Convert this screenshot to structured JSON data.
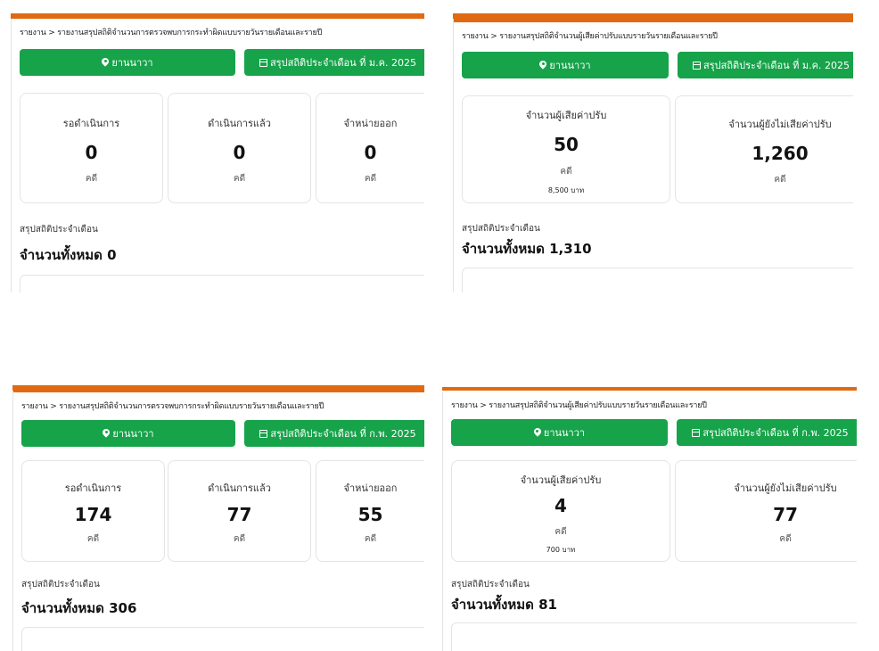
{
  "shared": {
    "location": "ยานนาวา",
    "unit_cases": "คดี",
    "summary_title": "สรุปสถิติประจำเดือน"
  },
  "panels": [
    {
      "breadcrumb": "รายงาน > รายงานสรุปสถิติจำนวนการตรวจพบการกระทำผิดแบบรายวันรายเดือนและรายปี",
      "month_label": "สรุปสถิติประจำเดือน ที่ ม.ค. 2025",
      "cards": [
        {
          "label": "รอดำเนินการ",
          "value": "0"
        },
        {
          "label": "ดำเนินการแล้ว",
          "value": "0"
        },
        {
          "label": "จำหน่ายออก",
          "value": "0"
        }
      ],
      "total": "จำนวนทั้งหมด 0"
    },
    {
      "breadcrumb": "รายงาน > รายงานสรุปสถิติจำนวนผู้เสียค่าปรับแบบรายวันรายเดือนและรายปี",
      "month_label": "สรุปสถิติประจำเดือน ที่ ม.ค. 2025",
      "cards": [
        {
          "label": "จำนวนผู้เสียค่าปรับ",
          "value": "50",
          "amount": "8,500 บาท"
        },
        {
          "label": "จำนวนผู้ยังไม่เสียค่าปรับ",
          "value": "1,260"
        }
      ],
      "total": "จำนวนทั้งหมด 1,310"
    },
    {
      "breadcrumb": "รายงาน > รายงานสรุปสถิติจำนวนการตรวจพบการกระทำผิดแบบรายวันรายเดือนและรายปี",
      "month_label": "สรุปสถิติประจำเดือน ที่ ก.พ. 2025",
      "cards": [
        {
          "label": "รอดำเนินการ",
          "value": "174"
        },
        {
          "label": "ดำเนินการแล้ว",
          "value": "77"
        },
        {
          "label": "จำหน่ายออก",
          "value": "55"
        }
      ],
      "total": "จำนวนทั้งหมด 306"
    },
    {
      "breadcrumb": "รายงาน > รายงานสรุปสถิติจำนวนผู้เสียค่าปรับแบบรายวันรายเดือนและรายปี",
      "month_label": "สรุปสถิติประจำเดือน ที่ ก.พ. 2025",
      "cards": [
        {
          "label": "จำนวนผู้เสียค่าปรับ",
          "value": "4",
          "amount": "700 บาท"
        },
        {
          "label": "จำนวนผู้ยังไม่เสียค่าปรับ",
          "value": "77"
        }
      ],
      "total": "จำนวนทั้งหมด 81"
    }
  ]
}
